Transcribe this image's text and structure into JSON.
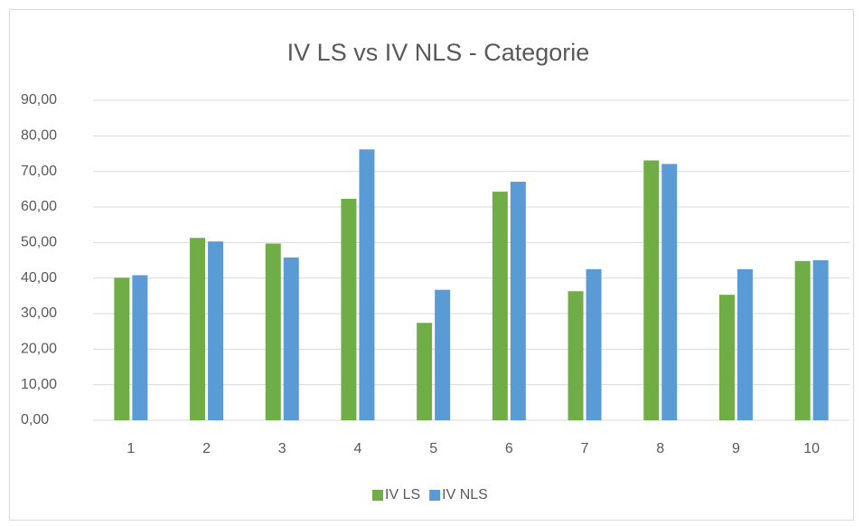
{
  "chart_data": {
    "type": "bar",
    "title": "IV LS vs IV NLS - Categorie",
    "categories": [
      "1",
      "2",
      "3",
      "4",
      "5",
      "6",
      "7",
      "8",
      "9",
      "10"
    ],
    "series": [
      {
        "name": "IV LS",
        "color": "#70ad47",
        "values": [
          40.1,
          51.3,
          49.7,
          62.3,
          27.4,
          64.3,
          36.3,
          73.1,
          35.3,
          44.8
        ]
      },
      {
        "name": "IV NLS",
        "color": "#5b9bd5",
        "values": [
          40.8,
          50.3,
          45.8,
          76.2,
          36.7,
          67.1,
          42.5,
          72.1,
          42.5,
          45.0
        ]
      }
    ],
    "ylim": [
      0,
      90
    ],
    "yticks": [
      {
        "value": 0,
        "label": "0,00"
      },
      {
        "value": 10,
        "label": "10,00"
      },
      {
        "value": 20,
        "label": "20,00"
      },
      {
        "value": 30,
        "label": "30,00"
      },
      {
        "value": 40,
        "label": "40,00"
      },
      {
        "value": 50,
        "label": "50,00"
      },
      {
        "value": 60,
        "label": "60,00"
      },
      {
        "value": 70,
        "label": "70,00"
      },
      {
        "value": 80,
        "label": "80,00"
      },
      {
        "value": 90,
        "label": "90,00"
      }
    ],
    "grid": true,
    "legend": "bottom"
  }
}
